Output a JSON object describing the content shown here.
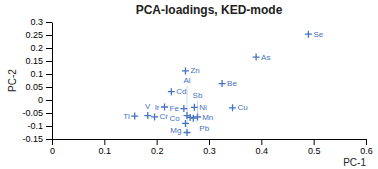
{
  "chart_data": {
    "type": "scatter",
    "title": "PCA-loadings, KED-mode",
    "x_label": "PC-1",
    "y_label": "PC-2",
    "x": [
      0.49,
      0.39,
      0.255,
      0.325,
      0.228,
      0.345,
      0.272,
      0.252,
      0.258,
      0.264,
      0.27,
      0.278,
      0.255,
      0.258,
      0.215,
      0.183,
      0.196,
      0.158
    ],
    "values": [
      0.253,
      0.165,
      0.112,
      0.063,
      0.032,
      -0.03,
      -0.028,
      -0.033,
      -0.06,
      -0.067,
      -0.07,
      -0.065,
      -0.09,
      -0.125,
      -0.027,
      -0.06,
      -0.065,
      -0.062
    ],
    "point_labels": [
      "Se",
      "As",
      "Zn",
      "Be",
      "Cd",
      "Cu",
      "Ni",
      "Fe",
      "Co",
      "Mn",
      "Pb",
      "Sb",
      "Mg",
      "Al",
      "Ir",
      "V",
      "Cr",
      "Ti"
    ],
    "color": "#4472c4",
    "marker": "plus",
    "grid": false,
    "xlim": [
      0,
      0.6
    ],
    "ylim": [
      -0.15,
      0.3
    ],
    "xticks": [
      0,
      0.1,
      0.2,
      0.3,
      0.4,
      0.5,
      0.6
    ],
    "yticks": [
      -0.15,
      -0.1,
      -0.05,
      0,
      0.05,
      0.1,
      0.15,
      0.2,
      0.25,
      0.3
    ]
  }
}
